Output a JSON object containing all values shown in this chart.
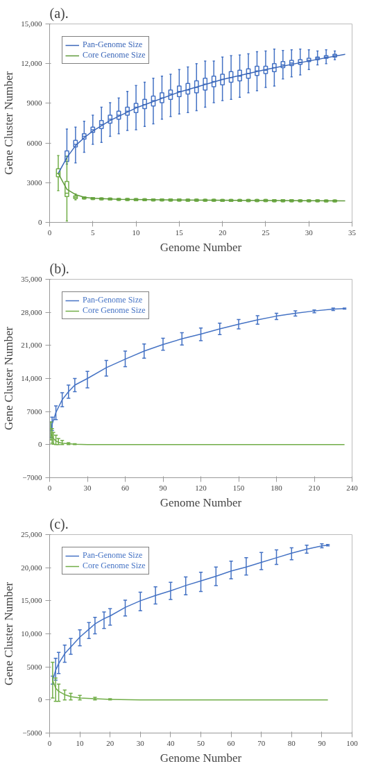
{
  "chart_data": [
    {
      "type": "box",
      "title": "(a).",
      "xlabel": "Genome Number",
      "ylabel": "Gene Cluster Number",
      "xlim": [
        0,
        35
      ],
      "xticks": [
        0,
        5,
        10,
        15,
        20,
        25,
        30,
        35
      ],
      "ylim": [
        0,
        15000
      ],
      "yticks": [
        0,
        3000,
        6000,
        9000,
        {
          "value": 12000,
          "label": "12,000"
        },
        {
          "value": 15000,
          "label": "15,000"
        }
      ],
      "grid": false,
      "legend": "top left",
      "series": [
        {
          "type": "box",
          "color": "#4472c4",
          "x": [
            2,
            3,
            4,
            5,
            6,
            7,
            8,
            9,
            10,
            11,
            12,
            13,
            14,
            15,
            16,
            17,
            18,
            19,
            20,
            21,
            22,
            23,
            24,
            25,
            26,
            27,
            28,
            29,
            30,
            31,
            32,
            33
          ],
          "boxes": [
            {
              "low": 4400,
              "q1": 4600,
              "median": 5000,
              "q3": 5400,
              "high": 7050
            },
            {
              "low": 4500,
              "q1": 5700,
              "median": 5900,
              "q3": 6200,
              "high": 7200
            },
            {
              "low": 5300,
              "q1": 6300,
              "median": 6500,
              "q3": 6700,
              "high": 7650
            },
            {
              "low": 5900,
              "q1": 6800,
              "median": 7000,
              "q3": 7200,
              "high": 8100
            },
            {
              "low": 6050,
              "q1": 7100,
              "median": 7400,
              "q3": 7700,
              "high": 8700
            },
            {
              "low": 6500,
              "q1": 7500,
              "median": 7800,
              "q3": 8100,
              "high": 9050
            },
            {
              "low": 6700,
              "q1": 7800,
              "median": 8100,
              "q3": 8400,
              "high": 9400
            },
            {
              "low": 6950,
              "q1": 8100,
              "median": 8400,
              "q3": 8700,
              "high": 9900
            },
            {
              "low": 7000,
              "q1": 8300,
              "median": 8700,
              "q3": 9000,
              "high": 10350
            },
            {
              "low": 7250,
              "q1": 8600,
              "median": 8900,
              "q3": 9300,
              "high": 10600
            },
            {
              "low": 7450,
              "q1": 8800,
              "median": 9200,
              "q3": 9550,
              "high": 10900
            },
            {
              "low": 7800,
              "q1": 9050,
              "median": 9400,
              "q3": 9800,
              "high": 11050
            },
            {
              "low": 8000,
              "q1": 9300,
              "median": 9700,
              "q3": 10000,
              "high": 11200
            },
            {
              "low": 8200,
              "q1": 9500,
              "median": 9900,
              "q3": 10300,
              "high": 11550
            },
            {
              "low": 8300,
              "q1": 9700,
              "median": 10000,
              "q3": 10500,
              "high": 11750
            },
            {
              "low": 8450,
              "q1": 9800,
              "median": 10200,
              "q3": 10700,
              "high": 12000
            },
            {
              "low": 8700,
              "q1": 10000,
              "median": 10450,
              "q3": 10900,
              "high": 12200
            },
            {
              "low": 9050,
              "q1": 10250,
              "median": 10650,
              "q3": 11050,
              "high": 12200
            },
            {
              "low": 9200,
              "q1": 10400,
              "median": 10800,
              "q3": 11200,
              "high": 12500
            },
            {
              "low": 9300,
              "q1": 10600,
              "median": 10950,
              "q3": 11400,
              "high": 12600
            },
            {
              "low": 9450,
              "q1": 10700,
              "median": 11050,
              "q3": 11500,
              "high": 12650
            },
            {
              "low": 9800,
              "q1": 10900,
              "median": 11250,
              "q3": 11600,
              "high": 12750
            },
            {
              "low": 9950,
              "q1": 11100,
              "median": 11450,
              "q3": 11800,
              "high": 12900
            },
            {
              "low": 10200,
              "q1": 11250,
              "median": 11500,
              "q3": 11800,
              "high": 12950
            },
            {
              "low": 10300,
              "q1": 11400,
              "median": 11700,
              "q3": 12000,
              "high": 13100
            },
            {
              "low": 10850,
              "q1": 11700,
              "median": 11900,
              "q3": 12150,
              "high": 13000
            },
            {
              "low": 11000,
              "q1": 11850,
              "median": 12050,
              "q3": 12250,
              "high": 13050
            },
            {
              "low": 11150,
              "q1": 11950,
              "median": 12100,
              "q3": 12300,
              "high": 13100
            },
            {
              "low": 11550,
              "q1": 12150,
              "median": 12250,
              "q3": 12400,
              "high": 13050
            },
            {
              "low": 11900,
              "q1": 12300,
              "median": 12400,
              "q3": 12500,
              "high": 12950
            },
            {
              "low": 12000,
              "q1": 12400,
              "median": 12500,
              "q3": 12600,
              "high": 13050
            },
            {
              "low": 12300,
              "q1": 12500,
              "median": 12600,
              "q3": 12700,
              "high": 12950
            }
          ]
        },
        {
          "type": "box",
          "color": "#70ad47",
          "x": [
            1,
            2,
            3,
            4,
            5,
            6,
            7,
            8,
            9,
            10,
            11,
            12,
            13,
            14,
            15,
            16,
            17,
            18,
            19,
            20,
            21,
            22,
            23,
            24,
            25,
            26,
            27,
            28,
            29,
            30,
            31,
            32,
            33
          ],
          "boxes": [
            {
              "low": 2400,
              "q1": 3450,
              "median": 3700,
              "q3": 4050,
              "high": 5050
            },
            {
              "low": 100,
              "q1": 1950,
              "median": 2200,
              "q3": 3100,
              "high": 5000
            },
            {
              "low": 1700,
              "q1": 1800,
              "median": 1900,
              "q3": 2000,
              "high": 2150
            },
            {
              "low": 1775,
              "q1": 1775,
              "median": 1850,
              "q3": 1925,
              "high": 1925
            },
            {
              "low": 1725,
              "q1": 1725,
              "median": 1800,
              "q3": 1875,
              "high": 1875
            },
            {
              "low": 1705,
              "q1": 1705,
              "median": 1780,
              "q3": 1855,
              "high": 1855
            },
            {
              "low": 1685,
              "q1": 1685,
              "median": 1760,
              "q3": 1835,
              "high": 1835
            },
            {
              "low": 1665,
              "q1": 1665,
              "median": 1740,
              "q3": 1815,
              "high": 1815
            },
            {
              "low": 1655,
              "q1": 1655,
              "median": 1730,
              "q3": 1805,
              "high": 1805
            },
            {
              "low": 1645,
              "q1": 1645,
              "median": 1720,
              "q3": 1795,
              "high": 1795
            },
            {
              "low": 1635,
              "q1": 1635,
              "median": 1710,
              "q3": 1785,
              "high": 1785
            },
            {
              "low": 1625,
              "q1": 1625,
              "median": 1700,
              "q3": 1775,
              "high": 1775
            },
            {
              "low": 1625,
              "q1": 1625,
              "median": 1700,
              "q3": 1775,
              "high": 1775
            },
            {
              "low": 1615,
              "q1": 1615,
              "median": 1690,
              "q3": 1765,
              "high": 1765
            },
            {
              "low": 1615,
              "q1": 1615,
              "median": 1690,
              "q3": 1765,
              "high": 1765
            },
            {
              "low": 1605,
              "q1": 1605,
              "median": 1680,
              "q3": 1755,
              "high": 1755
            },
            {
              "low": 1605,
              "q1": 1605,
              "median": 1680,
              "q3": 1755,
              "high": 1755
            },
            {
              "low": 1595,
              "q1": 1595,
              "median": 1670,
              "q3": 1745,
              "high": 1745
            },
            {
              "low": 1595,
              "q1": 1595,
              "median": 1670,
              "q3": 1745,
              "high": 1745
            },
            {
              "low": 1585,
              "q1": 1585,
              "median": 1660,
              "q3": 1735,
              "high": 1735
            },
            {
              "low": 1585,
              "q1": 1585,
              "median": 1660,
              "q3": 1735,
              "high": 1735
            },
            {
              "low": 1585,
              "q1": 1585,
              "median": 1660,
              "q3": 1735,
              "high": 1735
            },
            {
              "low": 1575,
              "q1": 1575,
              "median": 1650,
              "q3": 1725,
              "high": 1725
            },
            {
              "low": 1575,
              "q1": 1575,
              "median": 1650,
              "q3": 1725,
              "high": 1725
            },
            {
              "low": 1575,
              "q1": 1575,
              "median": 1650,
              "q3": 1725,
              "high": 1725
            },
            {
              "low": 1565,
              "q1": 1565,
              "median": 1640,
              "q3": 1715,
              "high": 1715
            },
            {
              "low": 1565,
              "q1": 1565,
              "median": 1640,
              "q3": 1715,
              "high": 1715
            },
            {
              "low": 1565,
              "q1": 1565,
              "median": 1640,
              "q3": 1715,
              "high": 1715
            },
            {
              "low": 1555,
              "q1": 1555,
              "median": 1630,
              "q3": 1705,
              "high": 1705
            },
            {
              "low": 1555,
              "q1": 1555,
              "median": 1630,
              "q3": 1705,
              "high": 1705
            },
            {
              "low": 1555,
              "q1": 1555,
              "median": 1630,
              "q3": 1705,
              "high": 1705
            },
            {
              "low": 1545,
              "q1": 1545,
              "median": 1620,
              "q3": 1695,
              "high": 1695
            },
            {
              "low": 1545,
              "q1": 1545,
              "median": 1620,
              "q3": 1695,
              "high": 1695
            }
          ]
        },
        {
          "name": "Pan-Genome Size",
          "type": "line",
          "color": "#3a66b8",
          "x": [
            1,
            2,
            3,
            4,
            5,
            7,
            10,
            15,
            20,
            25,
            30,
            34.2
          ],
          "values": [
            3700,
            4900,
            5800,
            6400,
            6900,
            7700,
            8650,
            9850,
            10800,
            11550,
            12200,
            12700
          ]
        },
        {
          "name": "Core Genome Size",
          "type": "line",
          "color": "#5f9a3a",
          "x": [
            1,
            2,
            3,
            4,
            5,
            8,
            15,
            25,
            34.2
          ],
          "values": [
            3700,
            2500,
            2100,
            1900,
            1820,
            1740,
            1690,
            1650,
            1620
          ]
        }
      ]
    },
    {
      "type": "line",
      "title": "(b).",
      "xlabel": "Genome Number",
      "ylabel": "Gene Cluster Number",
      "xlim": [
        0,
        240
      ],
      "xticks": [
        0,
        30,
        60,
        90,
        120,
        150,
        180,
        210,
        240
      ],
      "ylim": [
        -7000,
        35000
      ],
      "yticks": [
        {
          "value": -7000,
          "label": "−7000"
        },
        0,
        7000,
        {
          "value": 14000,
          "label": "14,000"
        },
        {
          "value": 21000,
          "label": "21,000"
        },
        {
          "value": 28000,
          "label": "28,000"
        },
        {
          "value": 35000,
          "label": "35,000"
        }
      ],
      "grid": false,
      "legend": "top left",
      "series": [
        {
          "name": "Pan-Genome Size",
          "color": "#4472c4",
          "x": [
            1,
            2,
            5,
            10,
            15,
            20,
            30,
            45,
            60,
            75,
            90,
            105,
            120,
            135,
            150,
            165,
            180,
            195,
            210,
            225,
            234
          ],
          "values": [
            3000,
            4300,
            6800,
            9500,
            11200,
            12600,
            14000,
            16300,
            18100,
            19800,
            21200,
            22400,
            23400,
            24500,
            25500,
            26400,
            27200,
            27800,
            28300,
            28700,
            28800
          ],
          "errors": [
            [
              1500,
              4800
            ],
            [
              3000,
              5800
            ],
            [
              5300,
              8200
            ],
            [
              8000,
              11000
            ],
            [
              9800,
              12600
            ],
            [
              11200,
              14000
            ],
            [
              12000,
              15500
            ],
            [
              14500,
              17800
            ],
            [
              16500,
              19800
            ],
            [
              18300,
              21300
            ],
            [
              20000,
              22500
            ],
            [
              21100,
              23700
            ],
            [
              22000,
              24700
            ],
            [
              23300,
              25700
            ],
            [
              24500,
              26500
            ],
            [
              25500,
              27300
            ],
            [
              26500,
              27800
            ],
            [
              27200,
              28300
            ],
            [
              27900,
              28500
            ],
            [
              28400,
              28900
            ],
            [
              28700,
              28900
            ]
          ]
        },
        {
          "name": "Core Genome Size",
          "color": "#70ad47",
          "x": [
            1,
            2,
            3,
            5,
            7,
            10,
            15,
            20,
            30,
            60,
            120,
            180,
            234
          ],
          "values": [
            2500,
            1800,
            1300,
            800,
            500,
            300,
            200,
            100,
            0,
            0,
            0,
            0,
            0
          ],
          "errors": [
            [
              1000,
              4800
            ],
            [
              300,
              3400
            ],
            [
              100,
              2600
            ],
            [
              0,
              2000
            ],
            [
              0,
              1300
            ],
            [
              0,
              900
            ],
            [
              0,
              400
            ],
            [
              0,
              200
            ],
            null,
            null,
            null,
            null,
            null
          ]
        }
      ]
    },
    {
      "type": "line",
      "title": "(c).",
      "xlabel": "Genome Number",
      "ylabel": "Gene Cluster Number",
      "xlim": [
        0,
        100
      ],
      "xticks": [
        0,
        10,
        20,
        30,
        40,
        50,
        60,
        70,
        80,
        90,
        100
      ],
      "ylim": [
        -5000,
        25000
      ],
      "yticks": [
        {
          "value": -5000,
          "label": "−5000"
        },
        0,
        5000,
        {
          "value": 10000,
          "label": "10,000"
        },
        {
          "value": 15000,
          "label": "15,000"
        },
        {
          "value": 20000,
          "label": "20,000"
        },
        {
          "value": 25000,
          "label": "25,000"
        }
      ],
      "grid": false,
      "legend": "top left",
      "series": [
        {
          "name": "Pan-Genome Size",
          "color": "#4472c4",
          "x": [
            1,
            2,
            3,
            5,
            7,
            10,
            13,
            15,
            18,
            20,
            25,
            30,
            35,
            40,
            45,
            50,
            55,
            60,
            65,
            70,
            75,
            80,
            85,
            90,
            92
          ],
          "values": [
            3000,
            4500,
            5500,
            7000,
            8000,
            9500,
            10700,
            11500,
            12300,
            12700,
            14000,
            15000,
            15800,
            16500,
            17300,
            18000,
            18700,
            19500,
            20100,
            20800,
            21500,
            22200,
            22800,
            23300,
            23400
          ],
          "errors": [
            [
              2400,
              3600
            ],
            [
              3000,
              6300
            ],
            [
              4000,
              7200
            ],
            [
              5700,
              8300
            ],
            [
              6900,
              9300
            ],
            [
              8200,
              10600
            ],
            [
              9300,
              11700
            ],
            [
              10000,
              12500
            ],
            [
              10800,
              13300
            ],
            [
              11300,
              13800
            ],
            [
              12700,
              15100
            ],
            [
              13500,
              16300
            ],
            [
              14500,
              17100
            ],
            [
              15200,
              17800
            ],
            [
              15900,
              18600
            ],
            [
              16400,
              19300
            ],
            [
              17300,
              20100
            ],
            [
              18300,
              21000
            ],
            [
              18900,
              21500
            ],
            [
              19700,
              22300
            ],
            [
              20500,
              22700
            ],
            [
              21200,
              23000
            ],
            [
              22200,
              23400
            ],
            [
              23000,
              23600
            ],
            [
              23300,
              23500
            ]
          ]
        },
        {
          "name": "Core Genome Size",
          "color": "#70ad47",
          "x": [
            1,
            2,
            3,
            5,
            7,
            10,
            15,
            20,
            30,
            50,
            70,
            92
          ],
          "values": [
            3000,
            1800,
            1300,
            800,
            500,
            300,
            200,
            100,
            0,
            0,
            0,
            0
          ],
          "errors": [
            [
              300,
              5700
            ],
            [
              -200,
              3300
            ],
            [
              -200,
              2400
            ],
            [
              0,
              1500
            ],
            [
              0,
              1000
            ],
            [
              0,
              700
            ],
            [
              0,
              400
            ],
            [
              0,
              200
            ],
            null,
            null,
            null,
            null
          ]
        }
      ]
    }
  ]
}
